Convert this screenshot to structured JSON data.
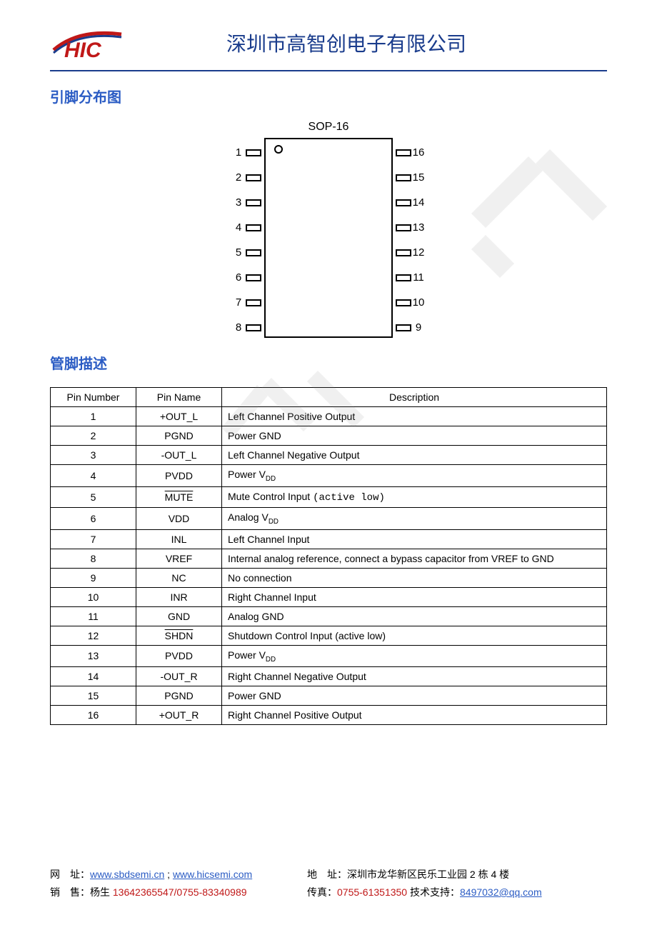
{
  "header": {
    "company": "深圳市高智创电子有限公司",
    "logo_text": "HIC",
    "logo_color": "#c01818",
    "logo_stroke": "#1a3c8c"
  },
  "sections": {
    "pinout_title": "引脚分布图",
    "pindesc_title": "管脚描述"
  },
  "diagram": {
    "package_label": "SOP-16",
    "pin_count": 16,
    "left_pins": [
      "1",
      "2",
      "3",
      "4",
      "5",
      "6",
      "7",
      "8"
    ],
    "right_pins": [
      "16",
      "15",
      "14",
      "13",
      "12",
      "11",
      "10",
      "9"
    ]
  },
  "table": {
    "headers": {
      "num": "Pin Number",
      "name": "Pin Name",
      "desc": "Description"
    },
    "rows": [
      {
        "num": "1",
        "name": "+OUT_L",
        "desc": "Left Channel Positive Output"
      },
      {
        "num": "2",
        "name": "PGND",
        "desc": "Power GND"
      },
      {
        "num": "3",
        "name": "-OUT_L",
        "desc": "Left Channel Negative Output"
      },
      {
        "num": "4",
        "name": "PVDD",
        "desc_prefix": "Power V",
        "desc_sub": "DD"
      },
      {
        "num": "5",
        "name": "MUTE",
        "name_overline": true,
        "desc_prefix": "Mute Control Input ",
        "desc_mono": "(active low)"
      },
      {
        "num": "6",
        "name": "VDD",
        "desc_prefix": "Analog V",
        "desc_sub": "DD"
      },
      {
        "num": "7",
        "name": "INL",
        "desc": "Left Channel Input"
      },
      {
        "num": "8",
        "name": "VREF",
        "desc": "Internal analog reference, connect a bypass capacitor from VREF to GND"
      },
      {
        "num": "9",
        "name": "NC",
        "desc": "No connection"
      },
      {
        "num": "10",
        "name": "INR",
        "desc": "Right Channel Input"
      },
      {
        "num": "11",
        "name": "GND",
        "desc": "Analog GND"
      },
      {
        "num": "12",
        "name": "SHDN",
        "name_overline": true,
        "desc": "Shutdown Control Input (active low)"
      },
      {
        "num": "13",
        "name": "PVDD",
        "desc_prefix": "Power V",
        "desc_sub": "DD"
      },
      {
        "num": "14",
        "name": "-OUT_R",
        "desc": "Right Channel Negative Output"
      },
      {
        "num": "15",
        "name": "PGND",
        "desc": "Power GND"
      },
      {
        "num": "16",
        "name": "+OUT_R",
        "desc": "Right Channel Positive Output"
      }
    ]
  },
  "footer": {
    "web_label": "网",
    "web_label2": "址：",
    "web_link1": "www.sbdsemi.cn",
    "web_sep": " ; ",
    "web_link2": "www.hicsemi.com",
    "addr_label": "地",
    "addr_label2": "址：",
    "addr_value": "深圳市龙华新区民乐工业园 2 栋 4 楼",
    "sales_label": "销",
    "sales_label2": "售：",
    "sales_value": "杨生 ",
    "sales_phone": "13642365547/0755-83340989",
    "fax_label": "传真：",
    "fax_value": "0755-61351350",
    "tech_label": "   技术支持：",
    "tech_email": "8497032@qq.com"
  },
  "style": {
    "brand_blue": "#1a3c8c",
    "link_blue": "#2b5cc4",
    "red": "#c01818"
  }
}
